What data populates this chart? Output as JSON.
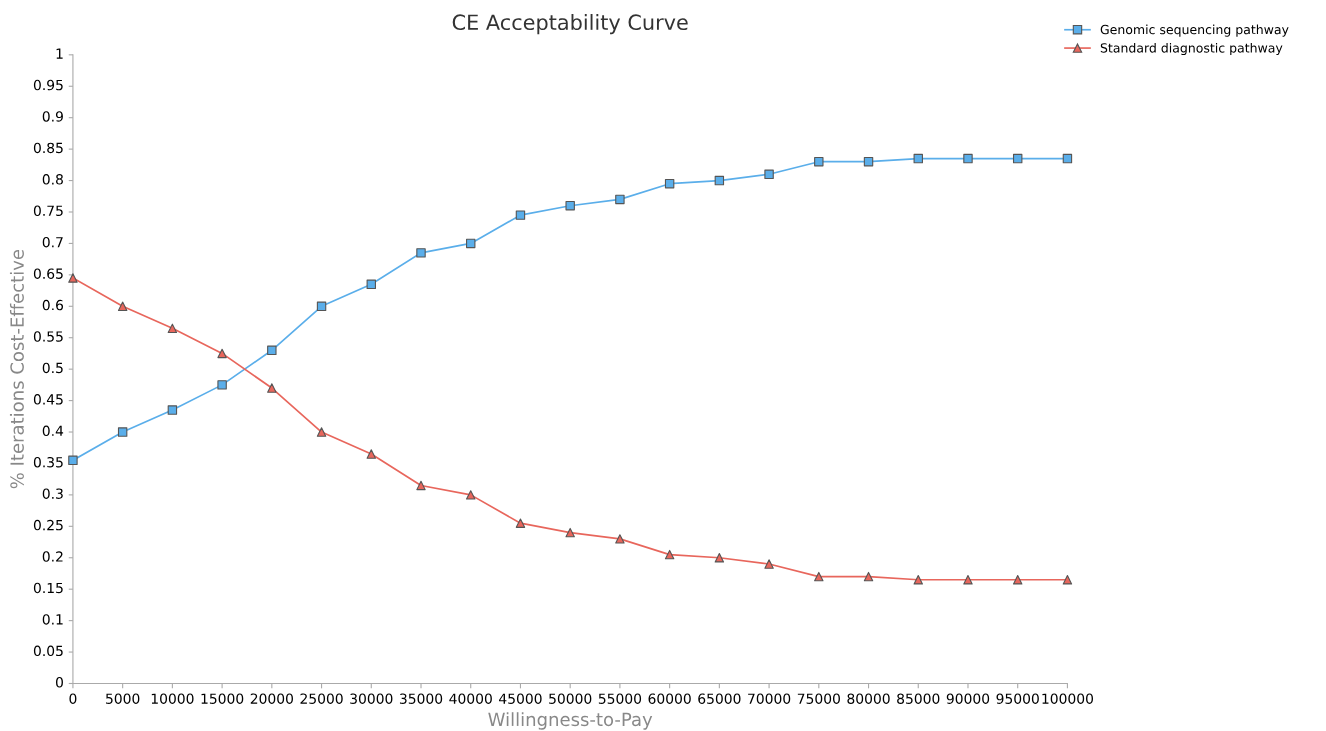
{
  "chart_data": {
    "type": "line",
    "title": "CE Acceptability Curve",
    "xlabel": "Willingness-to-Pay",
    "ylabel": "% Iterations Cost-Effective",
    "x": [
      0,
      5000,
      10000,
      15000,
      20000,
      25000,
      30000,
      35000,
      40000,
      45000,
      50000,
      55000,
      60000,
      65000,
      70000,
      75000,
      80000,
      85000,
      90000,
      95000,
      100000
    ],
    "series": [
      {
        "name": "Genomic sequencing pathway",
        "color": "#5aaeea",
        "marker": "square",
        "values": [
          0.355,
          0.4,
          0.435,
          0.475,
          0.53,
          0.6,
          0.635,
          0.685,
          0.7,
          0.745,
          0.76,
          0.77,
          0.795,
          0.8,
          0.81,
          0.83,
          0.83,
          0.835,
          0.835,
          0.835,
          0.835
        ]
      },
      {
        "name": "Standard diagnostic pathway",
        "color": "#e8665c",
        "marker": "triangle",
        "values": [
          0.645,
          0.6,
          0.565,
          0.525,
          0.47,
          0.4,
          0.365,
          0.315,
          0.3,
          0.255,
          0.24,
          0.23,
          0.205,
          0.2,
          0.19,
          0.17,
          0.17,
          0.165,
          0.165,
          0.165,
          0.165
        ]
      }
    ],
    "xlim": [
      0,
      100000
    ],
    "xticks": [
      0,
      5000,
      10000,
      15000,
      20000,
      25000,
      30000,
      35000,
      40000,
      45000,
      50000,
      55000,
      60000,
      65000,
      70000,
      75000,
      80000,
      85000,
      90000,
      95000,
      100000
    ],
    "ylim": [
      0,
      1
    ],
    "yticks": [
      0,
      0.05,
      0.1,
      0.15,
      0.2,
      0.25,
      0.3,
      0.35,
      0.4,
      0.45,
      0.5,
      0.55,
      0.6,
      0.65,
      0.7,
      0.75,
      0.8,
      0.85,
      0.9,
      0.95,
      1
    ],
    "grid": false,
    "legend": "top right",
    "line_style": "solid"
  }
}
